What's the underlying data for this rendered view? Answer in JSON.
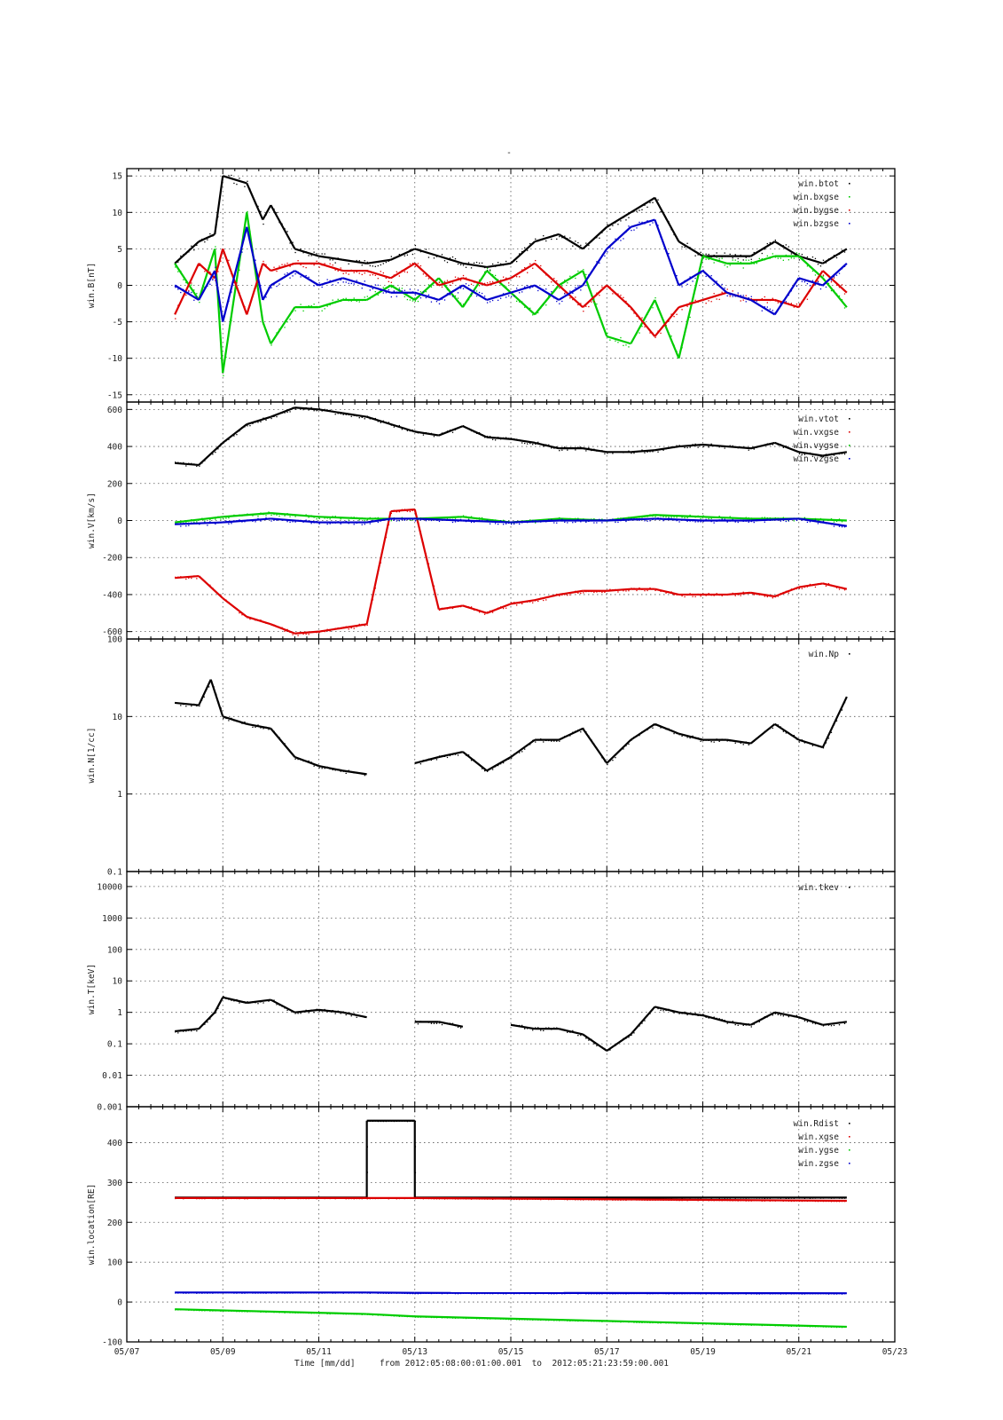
{
  "figure": {
    "title_mark": "-",
    "x_axis_label": "Time [mm/dd]",
    "range_text": "from 2012:05:08:00:01:00.001  to  2012:05:21:23:59:00.001",
    "x_ticks": [
      "05/07",
      "05/09",
      "05/11",
      "05/13",
      "05/15",
      "05/17",
      "05/19",
      "05/21",
      "05/23"
    ],
    "colors": {
      "black": "#000000",
      "green": "#00cc00",
      "red": "#dd0000",
      "blue": "#0000cc"
    }
  },
  "chart_data": [
    {
      "type": "scatter",
      "ylabel": "win.B[nT]",
      "ylim": [
        -16,
        16
      ],
      "yticks": [
        15,
        10,
        5,
        0,
        -5,
        -10,
        -15
      ],
      "grid": true,
      "legend_position": "top-right",
      "series": [
        {
          "name": "win.btot",
          "color": "#000000",
          "x": [
            "05/08 00:00",
            "05/08 12:00",
            "05/08 20:00",
            "05/09 00:00",
            "05/09 12:00",
            "05/09 20:00",
            "05/10 00:00",
            "05/10 12:00",
            "05/11 00:00",
            "05/11 12:00",
            "05/12 00:00",
            "05/12 12:00",
            "05/13 00:00",
            "05/13 12:00",
            "05/14 00:00",
            "05/14 12:00",
            "05/15 00:00",
            "05/15 12:00",
            "05/16 00:00",
            "05/16 12:00",
            "05/17 00:00",
            "05/17 12:00",
            "05/18 00:00",
            "05/18 12:00",
            "05/19 00:00",
            "05/19 12:00",
            "05/20 00:00",
            "05/20 12:00",
            "05/21 00:00",
            "05/21 12:00",
            "05/22 00:00"
          ],
          "y": [
            3,
            6,
            7,
            15,
            14,
            9,
            11,
            5,
            4,
            3.5,
            3,
            3.5,
            5,
            4,
            3,
            2.5,
            3,
            6,
            7,
            5,
            8,
            10,
            12,
            6,
            4,
            4,
            4,
            6,
            4,
            3,
            5
          ]
        },
        {
          "name": "win.bxgse",
          "color": "#00cc00",
          "x": [
            "05/08 00:00",
            "05/08 12:00",
            "05/08 20:00",
            "05/09 00:00",
            "05/09 12:00",
            "05/09 20:00",
            "05/10 00:00",
            "05/10 12:00",
            "05/11 00:00",
            "05/11 12:00",
            "05/12 00:00",
            "05/12 12:00",
            "05/13 00:00",
            "05/13 12:00",
            "05/14 00:00",
            "05/14 12:00",
            "05/15 00:00",
            "05/15 12:00",
            "05/16 00:00",
            "05/16 12:00",
            "05/17 00:00",
            "05/17 12:00",
            "05/18 00:00",
            "05/18 12:00",
            "05/19 00:00",
            "05/19 12:00",
            "05/20 00:00",
            "05/20 12:00",
            "05/21 00:00",
            "05/21 12:00",
            "05/22 00:00"
          ],
          "y": [
            3,
            -2,
            5,
            -12,
            10,
            -5,
            -8,
            -3,
            -3,
            -2,
            -2,
            0,
            -2,
            1,
            -3,
            2,
            -1,
            -4,
            0,
            2,
            -7,
            -8,
            -2,
            -10,
            4,
            3,
            3,
            4,
            4,
            1,
            -3
          ]
        },
        {
          "name": "win.bygse",
          "color": "#dd0000",
          "x": [
            "05/08 00:00",
            "05/08 12:00",
            "05/08 20:00",
            "05/09 00:00",
            "05/09 12:00",
            "05/09 20:00",
            "05/10 00:00",
            "05/10 12:00",
            "05/11 00:00",
            "05/11 12:00",
            "05/12 00:00",
            "05/12 12:00",
            "05/13 00:00",
            "05/13 12:00",
            "05/14 00:00",
            "05/14 12:00",
            "05/15 00:00",
            "05/15 12:00",
            "05/16 00:00",
            "05/16 12:00",
            "05/17 00:00",
            "05/17 12:00",
            "05/18 00:00",
            "05/18 12:00",
            "05/19 00:00",
            "05/19 12:00",
            "05/20 00:00",
            "05/20 12:00",
            "05/21 00:00",
            "05/21 12:00",
            "05/22 00:00"
          ],
          "y": [
            -4,
            3,
            1,
            5,
            -4,
            3,
            2,
            3,
            3,
            2,
            2,
            1,
            3,
            0,
            1,
            0,
            1,
            3,
            0,
            -3,
            0,
            -3,
            -7,
            -3,
            -2,
            -1,
            -2,
            -2,
            -3,
            2,
            -1
          ]
        },
        {
          "name": "win.bzgse",
          "color": "#0000cc",
          "x": [
            "05/08 00:00",
            "05/08 12:00",
            "05/08 20:00",
            "05/09 00:00",
            "05/09 12:00",
            "05/09 20:00",
            "05/10 00:00",
            "05/10 12:00",
            "05/11 00:00",
            "05/11 12:00",
            "05/12 00:00",
            "05/12 12:00",
            "05/13 00:00",
            "05/13 12:00",
            "05/14 00:00",
            "05/14 12:00",
            "05/15 00:00",
            "05/15 12:00",
            "05/16 00:00",
            "05/16 12:00",
            "05/17 00:00",
            "05/17 12:00",
            "05/18 00:00",
            "05/18 12:00",
            "05/19 00:00",
            "05/19 12:00",
            "05/20 00:00",
            "05/20 12:00",
            "05/21 00:00",
            "05/21 12:00",
            "05/22 00:00"
          ],
          "y": [
            0,
            -2,
            2,
            -5,
            8,
            -2,
            0,
            2,
            0,
            1,
            0,
            -1,
            -1,
            -2,
            0,
            -2,
            -1,
            0,
            -2,
            0,
            5,
            8,
            9,
            0,
            2,
            -1,
            -2,
            -4,
            1,
            0,
            3
          ]
        }
      ]
    },
    {
      "type": "scatter",
      "ylabel": "win.V[km/s]",
      "ylim": [
        -640,
        640
      ],
      "yticks": [
        600,
        400,
        200,
        0,
        -200,
        -400,
        -600
      ],
      "grid": true,
      "legend_position": "top-right",
      "series": [
        {
          "name": "win.vtot",
          "color": "#000000",
          "x": [
            "05/08 00:00",
            "05/08 12:00",
            "05/09 00:00",
            "05/09 12:00",
            "05/10 00:00",
            "05/10 12:00",
            "05/11 00:00",
            "05/11 12:00",
            "05/12 00:00",
            "05/13 00:00",
            "05/13 12:00",
            "05/14 00:00",
            "05/14 12:00",
            "05/15 00:00",
            "05/15 12:00",
            "05/16 00:00",
            "05/16 12:00",
            "05/17 00:00",
            "05/17 12:00",
            "05/18 00:00",
            "05/18 12:00",
            "05/19 00:00",
            "05/19 12:00",
            "05/20 00:00",
            "05/20 12:00",
            "05/21 00:00",
            "05/21 12:00",
            "05/22 00:00"
          ],
          "y": [
            310,
            300,
            420,
            520,
            560,
            610,
            600,
            580,
            560,
            480,
            460,
            510,
            450,
            440,
            420,
            390,
            390,
            370,
            370,
            380,
            400,
            410,
            400,
            390,
            420,
            370,
            350,
            370
          ]
        },
        {
          "name": "win.vxgse",
          "color": "#dd0000",
          "x": [
            "05/08 00:00",
            "05/08 12:00",
            "05/09 00:00",
            "05/09 12:00",
            "05/10 00:00",
            "05/10 12:00",
            "05/11 00:00",
            "05/11 12:00",
            "05/12 00:00",
            "05/12 12:00",
            "05/13 00:00",
            "05/13 12:00",
            "05/14 00:00",
            "05/14 12:00",
            "05/15 00:00",
            "05/15 12:00",
            "05/16 00:00",
            "05/16 12:00",
            "05/17 00:00",
            "05/17 12:00",
            "05/18 00:00",
            "05/18 12:00",
            "05/19 00:00",
            "05/19 12:00",
            "05/20 00:00",
            "05/20 12:00",
            "05/21 00:00",
            "05/21 12:00",
            "05/22 00:00"
          ],
          "y": [
            -310,
            -300,
            -420,
            -520,
            -560,
            -610,
            -600,
            -580,
            -560,
            50,
            60,
            -480,
            -460,
            -500,
            -450,
            -430,
            -400,
            -380,
            -380,
            -370,
            -370,
            -400,
            -400,
            -400,
            -390,
            -410,
            -360,
            -340,
            -370
          ]
        },
        {
          "name": "win.vygse",
          "color": "#00cc00",
          "x": [
            "05/08 00:00",
            "05/09 00:00",
            "05/10 00:00",
            "05/11 00:00",
            "05/12 00:00",
            "05/12 12:00",
            "05/13 00:00",
            "05/14 00:00",
            "05/15 00:00",
            "05/16 00:00",
            "05/17 00:00",
            "05/18 00:00",
            "05/19 00:00",
            "05/20 00:00",
            "05/21 00:00",
            "05/22 00:00"
          ],
          "y": [
            -10,
            20,
            40,
            20,
            10,
            10,
            10,
            20,
            -10,
            10,
            0,
            30,
            20,
            10,
            10,
            0
          ]
        },
        {
          "name": "win.vzgse",
          "color": "#0000cc",
          "x": [
            "05/08 00:00",
            "05/09 00:00",
            "05/10 00:00",
            "05/11 00:00",
            "05/12 00:00",
            "05/12 12:00",
            "05/13 00:00",
            "05/14 00:00",
            "05/15 00:00",
            "05/16 00:00",
            "05/17 00:00",
            "05/18 00:00",
            "05/19 00:00",
            "05/20 00:00",
            "05/21 00:00",
            "05/22 00:00"
          ],
          "y": [
            -20,
            -10,
            10,
            -10,
            -10,
            10,
            10,
            0,
            -10,
            0,
            0,
            10,
            0,
            0,
            10,
            -30
          ]
        }
      ]
    },
    {
      "type": "scatter",
      "ylabel": "win.N[1/cc]",
      "scale": "log",
      "ylim": [
        0.1,
        100
      ],
      "yticks": [
        "100",
        "10",
        "1",
        "0.1"
      ],
      "grid": true,
      "legend_position": "top-right",
      "series": [
        {
          "name": "win.Np",
          "color": "#000000",
          "x": [
            "05/08 00:00",
            "05/08 12:00",
            "05/08 18:00",
            "05/09 00:00",
            "05/09 12:00",
            "05/10 00:00",
            "05/10 12:00",
            "05/11 00:00",
            "05/11 12:00",
            "05/12 00:00",
            "05/13 00:00",
            "05/13 12:00",
            "05/14 00:00",
            "05/14 12:00",
            "05/15 00:00",
            "05/15 12:00",
            "05/16 00:00",
            "05/16 12:00",
            "05/17 00:00",
            "05/17 12:00",
            "05/18 00:00",
            "05/18 12:00",
            "05/19 00:00",
            "05/19 12:00",
            "05/20 00:00",
            "05/20 12:00",
            "05/21 00:00",
            "05/21 12:00",
            "05/22 00:00"
          ],
          "y": [
            15,
            14,
            30,
            10,
            8,
            7,
            3,
            2.3,
            2,
            1.8,
            2.5,
            3,
            3.5,
            2,
            3,
            5,
            5,
            7,
            2.5,
            5,
            8,
            6,
            5,
            5,
            4.5,
            8,
            5,
            4,
            18
          ]
        }
      ]
    },
    {
      "type": "scatter",
      "ylabel": "win.T[keV]",
      "scale": "log",
      "ylim": [
        0.001,
        30000
      ],
      "yticks": [
        "10000",
        "1000",
        "100",
        "10",
        "1",
        "0.1",
        "0.01",
        "0.001"
      ],
      "grid": true,
      "legend_position": "top-right",
      "series": [
        {
          "name": "win.tkev",
          "color": "#000000",
          "x": [
            "05/08 00:00",
            "05/08 12:00",
            "05/08 20:00",
            "05/09 00:00",
            "05/09 12:00",
            "05/10 00:00",
            "05/10 12:00",
            "05/11 00:00",
            "05/11 12:00",
            "05/12 00:00",
            "05/13 00:00",
            "05/13 12:00",
            "05/14 00:00",
            "05/15 00:00",
            "05/15 12:00",
            "05/16 00:00",
            "05/16 12:00",
            "05/17 00:00",
            "05/17 12:00",
            "05/18 00:00",
            "05/18 12:00",
            "05/19 00:00",
            "05/19 12:00",
            "05/20 00:00",
            "05/20 12:00",
            "05/21 00:00",
            "05/21 12:00",
            "05/22 00:00"
          ],
          "y": [
            0.25,
            0.3,
            1.0,
            3.0,
            2.0,
            2.5,
            1.0,
            1.2,
            1.0,
            0.7,
            0.5,
            0.5,
            0.35,
            0.4,
            0.3,
            0.3,
            0.2,
            0.06,
            0.2,
            1.5,
            1.0,
            0.8,
            0.5,
            0.4,
            1.0,
            0.7,
            0.4,
            0.5
          ]
        }
      ]
    },
    {
      "type": "scatter",
      "ylabel": "win.location[RE]",
      "ylim": [
        -100,
        490
      ],
      "yticks": [
        400,
        300,
        200,
        100,
        0,
        -100
      ],
      "grid": true,
      "legend_position": "top-right",
      "series": [
        {
          "name": "win.Rdist",
          "color": "#000000",
          "x": [
            "05/08 00:00",
            "05/12 00:00",
            "05/12 00:01",
            "05/13 00:00",
            "05/13 00:01",
            "05/22 00:00"
          ],
          "y": [
            262,
            262,
            455,
            455,
            262,
            262
          ]
        },
        {
          "name": "win.xgse",
          "color": "#dd0000",
          "x": [
            "05/08 00:00",
            "05/12 00:00",
            "05/13 00:00",
            "05/22 00:00"
          ],
          "y": [
            261,
            261,
            261,
            254
          ]
        },
        {
          "name": "win.ygse",
          "color": "#00cc00",
          "x": [
            "05/08 00:00",
            "05/12 00:00",
            "05/13 00:00",
            "05/22 00:00"
          ],
          "y": [
            -18,
            -30,
            -36,
            -62
          ]
        },
        {
          "name": "win.zgse",
          "color": "#0000cc",
          "x": [
            "05/08 00:00",
            "05/12 00:00",
            "05/13 00:00",
            "05/22 00:00"
          ],
          "y": [
            24,
            24,
            23,
            22
          ]
        }
      ]
    }
  ]
}
